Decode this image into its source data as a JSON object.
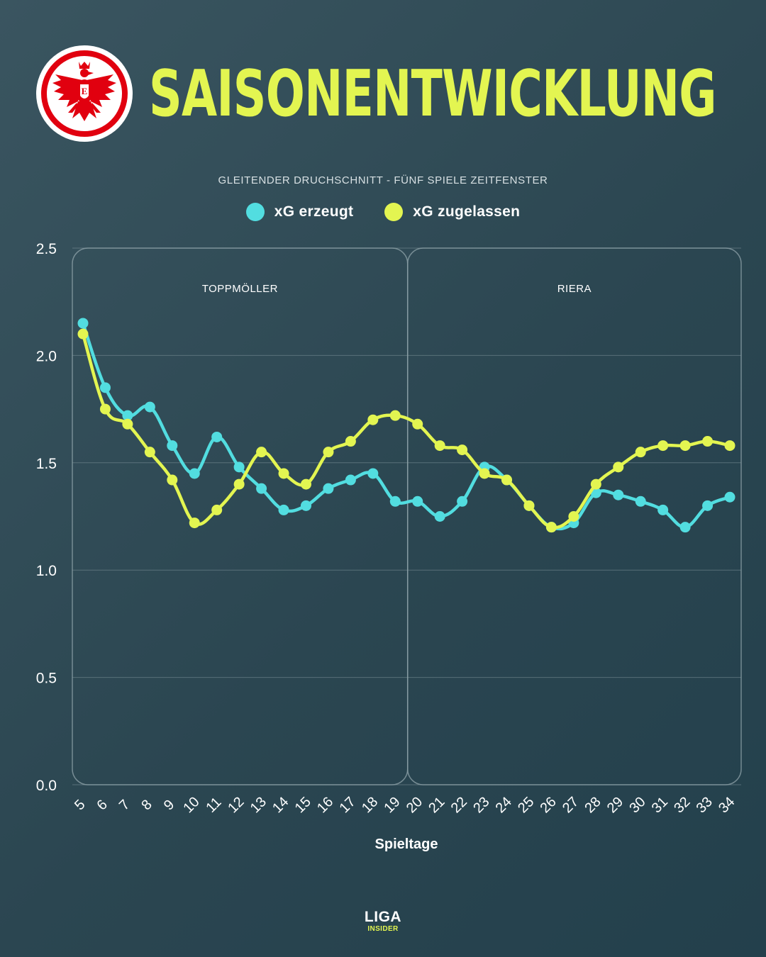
{
  "header": {
    "title": "SAISONENTWICKLUNG",
    "logo_icon": "eintracht-eagle-crest-icon"
  },
  "colors": {
    "title": "#e3f551",
    "erzeugt": "#52dde0",
    "zugelassen": "#e3f551",
    "logo_red": "#e1000f"
  },
  "chart_data": {
    "type": "line",
    "title": "",
    "subtitle": "GLEITENDER DRUCHSCHNITT - FÜNF SPIELE ZEITFENSTER",
    "xlabel": "Spieltage",
    "ylabel": "",
    "x": [
      5,
      6,
      7,
      8,
      9,
      10,
      11,
      12,
      13,
      14,
      15,
      16,
      17,
      18,
      19,
      20,
      21,
      22,
      23,
      24,
      25,
      26,
      27,
      28,
      29,
      30,
      31,
      32,
      33,
      34
    ],
    "ylim": [
      0,
      2.5
    ],
    "yticks": [
      "0.0",
      "0.5",
      "1.0",
      "1.5",
      "2.0",
      "2.5"
    ],
    "grid": true,
    "legend_position": "top-center",
    "series": [
      {
        "name": "xG erzeugt",
        "color": "#52dde0",
        "values": [
          2.15,
          1.85,
          1.72,
          1.76,
          1.58,
          1.45,
          1.62,
          1.48,
          1.38,
          1.28,
          1.3,
          1.38,
          1.42,
          1.45,
          1.32,
          1.32,
          1.25,
          1.32,
          1.48,
          1.42,
          1.3,
          1.2,
          1.22,
          1.36,
          1.35,
          1.32,
          1.28,
          1.2,
          1.3,
          1.34
        ]
      },
      {
        "name": "xG zugelassen",
        "color": "#e3f551",
        "values": [
          2.1,
          1.75,
          1.68,
          1.55,
          1.42,
          1.22,
          1.28,
          1.4,
          1.55,
          1.45,
          1.4,
          1.55,
          1.6,
          1.7,
          1.72,
          1.68,
          1.58,
          1.56,
          1.45,
          1.42,
          1.3,
          1.2,
          1.25,
          1.4,
          1.48,
          1.55,
          1.58,
          1.58,
          1.6,
          1.58
        ]
      }
    ],
    "phases": [
      {
        "label": "TOPPMÖLLER",
        "from": 5,
        "to": 20
      },
      {
        "label": "RIERA",
        "from": 20,
        "to": 34
      }
    ]
  },
  "footer": {
    "brand_top": "LIGA",
    "brand_bottom": "INSIDER"
  }
}
